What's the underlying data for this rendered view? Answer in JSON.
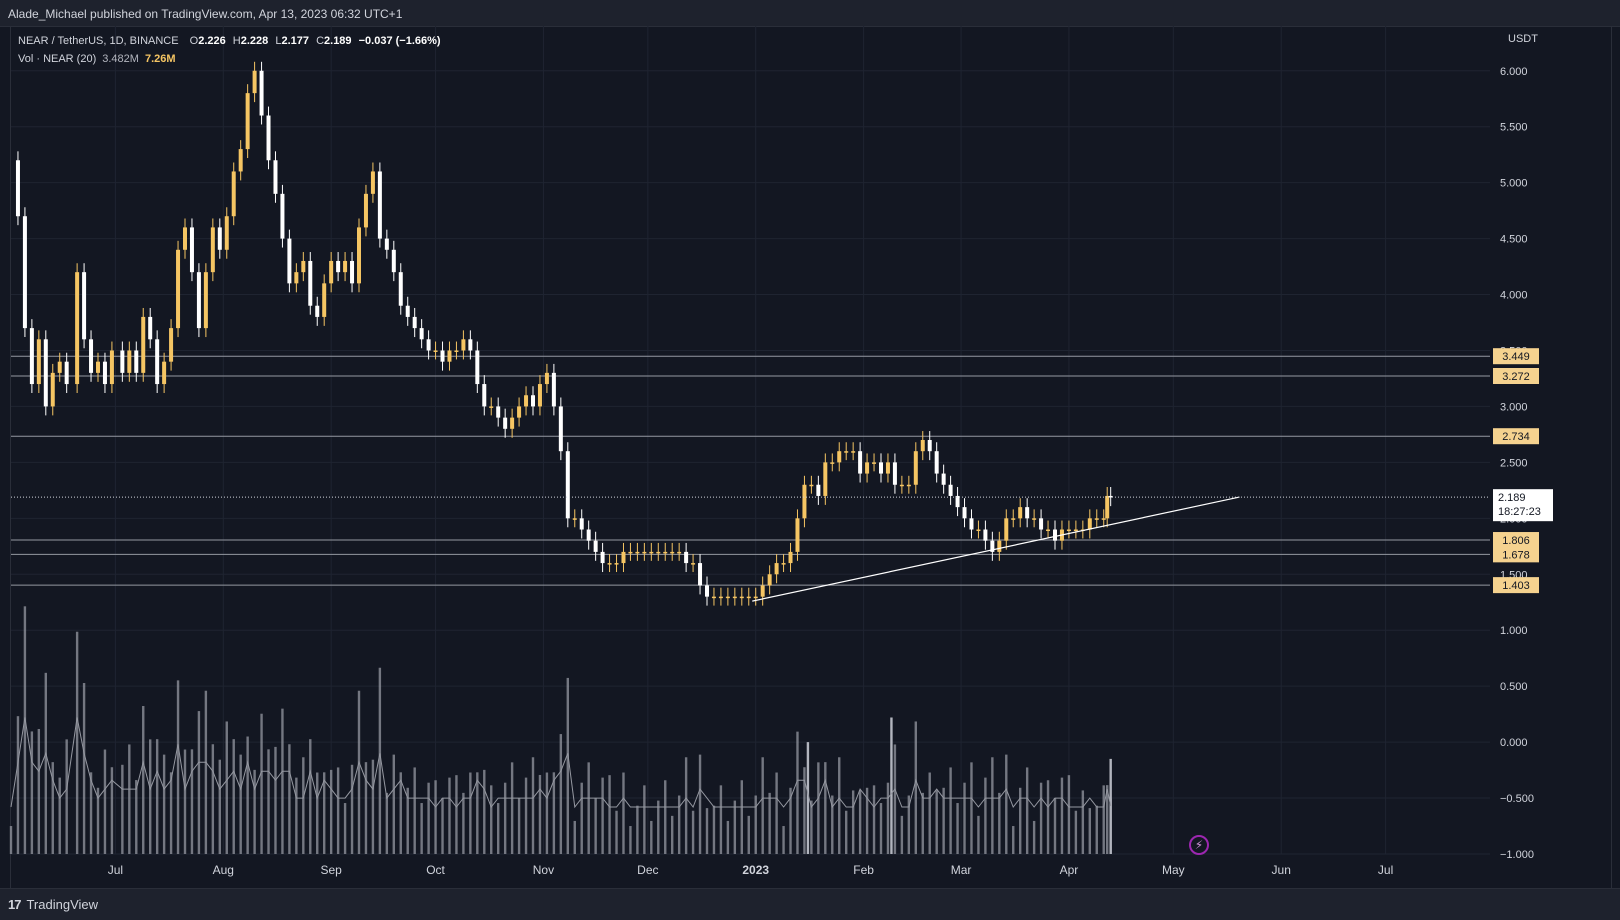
{
  "header": {
    "published": "Alade_Michael published on TradingView.com, Apr 13, 2023 06:32 UTC+1"
  },
  "legend": {
    "symbol": "NEAR / TetherUS, 1D, BINANCE",
    "open_label": "O",
    "open": "2.226",
    "high_label": "H",
    "high": "2.228",
    "low_label": "L",
    "low": "2.177",
    "close_label": "C",
    "close": "2.189",
    "change": "−0.037 (−1.66%)",
    "volume_label": "Vol · NEAR (20)",
    "volume_ma": "3.482M",
    "volume": "7.26M"
  },
  "footer": {
    "brand": "TradingView",
    "logo": "tradingview-logo-icon"
  },
  "colors": {
    "background": "#131722",
    "up": "#f5c563",
    "down": "#ffffff",
    "grid": "#1f2431",
    "level_tag": "#f5d28f",
    "trendline": "#ffffff",
    "volume_bar": "#9598a1"
  },
  "chart_data": {
    "type": "candlestick",
    "symbol": "NEAR / TetherUS",
    "interval": "1D",
    "y_axis_unit": "USDT",
    "yticks": [
      6.0,
      5.5,
      5.0,
      4.5,
      4.0,
      3.5,
      3.0,
      2.5,
      2.0,
      1.5,
      1.0,
      0.5,
      0.0,
      -0.5,
      -1.0
    ],
    "ytick_labels": [
      "6.000",
      "5.500",
      "5.000",
      "4.500",
      "4.000",
      "3.500",
      "3.000",
      "2.500",
      "2.000",
      "1.500",
      "1.000",
      "0.500",
      "0.000",
      "−0.500",
      "−1.000"
    ],
    "ylim": [
      -1.0,
      6.4
    ],
    "xticks": [
      {
        "label": "Jul",
        "date": "2022-07-01"
      },
      {
        "label": "Aug",
        "date": "2022-08-01"
      },
      {
        "label": "Sep",
        "date": "2022-09-01"
      },
      {
        "label": "Oct",
        "date": "2022-10-01"
      },
      {
        "label": "Nov",
        "date": "2022-11-01"
      },
      {
        "label": "Dec",
        "date": "2022-12-01"
      },
      {
        "label": "2023",
        "date": "2023-01-01"
      },
      {
        "label": "Feb",
        "date": "2023-02-01"
      },
      {
        "label": "Mar",
        "date": "2023-03-01"
      },
      {
        "label": "Apr",
        "date": "2023-04-01"
      },
      {
        "label": "May",
        "date": "2023-05-01"
      },
      {
        "label": "Jun",
        "date": "2023-06-01"
      },
      {
        "label": "Jul",
        "date": "2023-07-01"
      }
    ],
    "xlim": [
      "2022-06-01",
      "2023-07-31"
    ],
    "close_series": [
      [
        "2022-06-01",
        5.2
      ],
      [
        "2022-06-03",
        4.7
      ],
      [
        "2022-06-05",
        3.7
      ],
      [
        "2022-06-07",
        3.2
      ],
      [
        "2022-06-09",
        3.6
      ],
      [
        "2022-06-11",
        3.0
      ],
      [
        "2022-06-13",
        3.3
      ],
      [
        "2022-06-15",
        3.4
      ],
      [
        "2022-06-17",
        3.2
      ],
      [
        "2022-06-20",
        4.2
      ],
      [
        "2022-06-22",
        3.6
      ],
      [
        "2022-06-24",
        3.3
      ],
      [
        "2022-06-26",
        3.4
      ],
      [
        "2022-06-28",
        3.2
      ],
      [
        "2022-06-30",
        3.5
      ],
      [
        "2022-07-03",
        3.3
      ],
      [
        "2022-07-05",
        3.5
      ],
      [
        "2022-07-07",
        3.3
      ],
      [
        "2022-07-09",
        3.8
      ],
      [
        "2022-07-11",
        3.6
      ],
      [
        "2022-07-13",
        3.2
      ],
      [
        "2022-07-15",
        3.4
      ],
      [
        "2022-07-17",
        3.7
      ],
      [
        "2022-07-19",
        4.4
      ],
      [
        "2022-07-21",
        4.6
      ],
      [
        "2022-07-23",
        4.2
      ],
      [
        "2022-07-25",
        3.7
      ],
      [
        "2022-07-27",
        4.2
      ],
      [
        "2022-07-29",
        4.6
      ],
      [
        "2022-07-31",
        4.4
      ],
      [
        "2022-08-02",
        4.7
      ],
      [
        "2022-08-04",
        5.1
      ],
      [
        "2022-08-06",
        5.3
      ],
      [
        "2022-08-08",
        5.8
      ],
      [
        "2022-08-10",
        6.0
      ],
      [
        "2022-08-12",
        5.6
      ],
      [
        "2022-08-14",
        5.2
      ],
      [
        "2022-08-16",
        4.9
      ],
      [
        "2022-08-18",
        4.5
      ],
      [
        "2022-08-20",
        4.1
      ],
      [
        "2022-08-22",
        4.2
      ],
      [
        "2022-08-24",
        4.3
      ],
      [
        "2022-08-26",
        3.9
      ],
      [
        "2022-08-28",
        3.8
      ],
      [
        "2022-08-30",
        4.1
      ],
      [
        "2022-09-01",
        4.3
      ],
      [
        "2022-09-03",
        4.2
      ],
      [
        "2022-09-05",
        4.3
      ],
      [
        "2022-09-07",
        4.1
      ],
      [
        "2022-09-09",
        4.6
      ],
      [
        "2022-09-11",
        4.9
      ],
      [
        "2022-09-13",
        5.1
      ],
      [
        "2022-09-15",
        4.5
      ],
      [
        "2022-09-17",
        4.4
      ],
      [
        "2022-09-19",
        4.2
      ],
      [
        "2022-09-21",
        3.9
      ],
      [
        "2022-09-23",
        3.8
      ],
      [
        "2022-09-25",
        3.7
      ],
      [
        "2022-09-27",
        3.6
      ],
      [
        "2022-09-29",
        3.5
      ],
      [
        "2022-10-01",
        3.5
      ],
      [
        "2022-10-03",
        3.4
      ],
      [
        "2022-10-05",
        3.5
      ],
      [
        "2022-10-07",
        3.5
      ],
      [
        "2022-10-09",
        3.6
      ],
      [
        "2022-10-11",
        3.5
      ],
      [
        "2022-10-13",
        3.2
      ],
      [
        "2022-10-15",
        3.0
      ],
      [
        "2022-10-17",
        3.0
      ],
      [
        "2022-10-19",
        2.9
      ],
      [
        "2022-10-21",
        2.8
      ],
      [
        "2022-10-23",
        2.9
      ],
      [
        "2022-10-25",
        3.0
      ],
      [
        "2022-10-27",
        3.1
      ],
      [
        "2022-10-29",
        3.0
      ],
      [
        "2022-10-31",
        3.2
      ],
      [
        "2022-11-02",
        3.3
      ],
      [
        "2022-11-04",
        3.0
      ],
      [
        "2022-11-06",
        2.6
      ],
      [
        "2022-11-08",
        2.0
      ],
      [
        "2022-11-10",
        2.0
      ],
      [
        "2022-11-12",
        1.9
      ],
      [
        "2022-11-14",
        1.8
      ],
      [
        "2022-11-16",
        1.7
      ],
      [
        "2022-11-18",
        1.6
      ],
      [
        "2022-11-20",
        1.6
      ],
      [
        "2022-11-22",
        1.6
      ],
      [
        "2022-11-24",
        1.7
      ],
      [
        "2022-11-26",
        1.7
      ],
      [
        "2022-11-28",
        1.7
      ],
      [
        "2022-11-30",
        1.7
      ],
      [
        "2022-12-02",
        1.7
      ],
      [
        "2022-12-04",
        1.7
      ],
      [
        "2022-12-06",
        1.7
      ],
      [
        "2022-12-08",
        1.7
      ],
      [
        "2022-12-10",
        1.7
      ],
      [
        "2022-12-12",
        1.6
      ],
      [
        "2022-12-14",
        1.6
      ],
      [
        "2022-12-16",
        1.4
      ],
      [
        "2022-12-18",
        1.3
      ],
      [
        "2022-12-20",
        1.3
      ],
      [
        "2022-12-22",
        1.3
      ],
      [
        "2022-12-24",
        1.3
      ],
      [
        "2022-12-26",
        1.3
      ],
      [
        "2022-12-28",
        1.3
      ],
      [
        "2022-12-30",
        1.3
      ],
      [
        "2023-01-01",
        1.3
      ],
      [
        "2023-01-03",
        1.4
      ],
      [
        "2023-01-05",
        1.5
      ],
      [
        "2023-01-07",
        1.6
      ],
      [
        "2023-01-09",
        1.6
      ],
      [
        "2023-01-11",
        1.7
      ],
      [
        "2023-01-13",
        2.0
      ],
      [
        "2023-01-15",
        2.3
      ],
      [
        "2023-01-17",
        2.3
      ],
      [
        "2023-01-19",
        2.2
      ],
      [
        "2023-01-21",
        2.5
      ],
      [
        "2023-01-23",
        2.5
      ],
      [
        "2023-01-25",
        2.6
      ],
      [
        "2023-01-27",
        2.6
      ],
      [
        "2023-01-29",
        2.6
      ],
      [
        "2023-01-31",
        2.4
      ],
      [
        "2023-02-02",
        2.5
      ],
      [
        "2023-02-04",
        2.5
      ],
      [
        "2023-02-06",
        2.4
      ],
      [
        "2023-02-08",
        2.5
      ],
      [
        "2023-02-10",
        2.3
      ],
      [
        "2023-02-12",
        2.3
      ],
      [
        "2023-02-14",
        2.3
      ],
      [
        "2023-02-16",
        2.6
      ],
      [
        "2023-02-18",
        2.7
      ],
      [
        "2023-02-20",
        2.6
      ],
      [
        "2023-02-22",
        2.4
      ],
      [
        "2023-02-24",
        2.3
      ],
      [
        "2023-02-26",
        2.2
      ],
      [
        "2023-02-28",
        2.1
      ],
      [
        "2023-03-02",
        2.0
      ],
      [
        "2023-03-04",
        1.9
      ],
      [
        "2023-03-06",
        1.9
      ],
      [
        "2023-03-08",
        1.8
      ],
      [
        "2023-03-10",
        1.7
      ],
      [
        "2023-03-12",
        1.8
      ],
      [
        "2023-03-14",
        2.0
      ],
      [
        "2023-03-16",
        2.0
      ],
      [
        "2023-03-18",
        2.1
      ],
      [
        "2023-03-20",
        2.0
      ],
      [
        "2023-03-22",
        2.0
      ],
      [
        "2023-03-24",
        1.9
      ],
      [
        "2023-03-26",
        1.9
      ],
      [
        "2023-03-28",
        1.8
      ],
      [
        "2023-03-30",
        1.9
      ],
      [
        "2023-04-01",
        1.9
      ],
      [
        "2023-04-03",
        1.9
      ],
      [
        "2023-04-05",
        1.9
      ],
      [
        "2023-04-07",
        2.0
      ],
      [
        "2023-04-09",
        2.0
      ],
      [
        "2023-04-11",
        2.0
      ],
      [
        "2023-04-12",
        2.2
      ],
      [
        "2023-04-13",
        2.189
      ]
    ],
    "horizontal_levels": [
      {
        "value": 3.449,
        "label": "3.449"
      },
      {
        "value": 3.272,
        "label": "3.272"
      },
      {
        "value": 2.734,
        "label": "2.734"
      },
      {
        "value": 1.806,
        "label": "1.806"
      },
      {
        "value": 1.678,
        "label": "1.678"
      },
      {
        "value": 1.403,
        "label": "1.403"
      }
    ],
    "last_price": {
      "value": 2.189,
      "label": "2.189",
      "countdown": "18:27:23"
    },
    "trendline": [
      [
        "2022-12-31",
        1.26
      ],
      [
        "2023-05-20",
        2.19
      ]
    ],
    "volume_overlay": {
      "note": "volume histogram with 20-period moving average, drawn in the lower part of the price pane",
      "baseline": -1.0,
      "spikes": [
        [
          "2023-01-16",
          -0.0
        ],
        [
          "2023-02-09",
          0.22
        ],
        [
          "2023-04-13",
          -0.15
        ]
      ]
    }
  }
}
